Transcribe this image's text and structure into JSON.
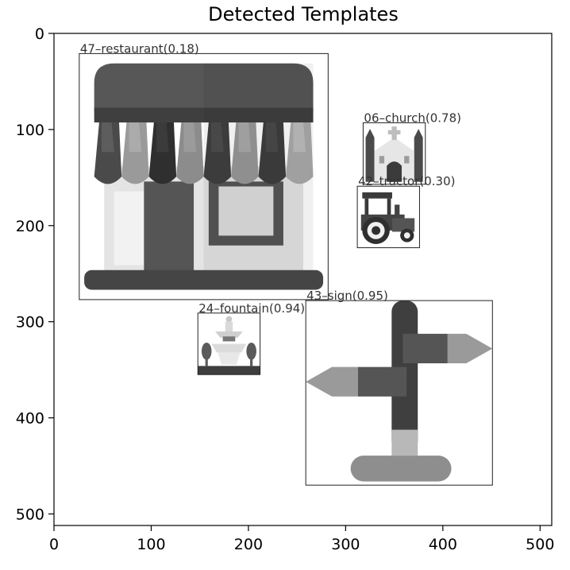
{
  "chart_data": {
    "type": "scatter",
    "title": "Detected Templates",
    "xlabel": "",
    "ylabel": "",
    "xlim": [
      0,
      512
    ],
    "ylim": [
      512,
      0
    ],
    "y_inverted": true,
    "grid": false,
    "xticks": [
      0,
      100,
      200,
      300,
      400,
      500
    ],
    "yticks": [
      0,
      100,
      200,
      300,
      400,
      500
    ],
    "xtick_labels": [
      "0",
      "100",
      "200",
      "300",
      "400",
      "500"
    ],
    "ytick_labels": [
      "0",
      "100",
      "200",
      "300",
      "400",
      "500"
    ],
    "detections": [
      {
        "label": "47–restaurant(0.18)",
        "id": "47",
        "name": "restaurant",
        "score": 0.18,
        "x0": 26,
        "y0": 21,
        "x1": 282,
        "y1": 277,
        "icon": "restaurant-storefront-icon"
      },
      {
        "label": "06–church(0.78)",
        "id": "06",
        "name": "church",
        "score": 0.78,
        "x0": 318,
        "y0": 93,
        "x1": 382,
        "y1": 157,
        "icon": "church-icon"
      },
      {
        "label": "42–tractor(0.30)",
        "id": "42",
        "name": "tractor",
        "score": 0.3,
        "x0": 312,
        "y0": 159,
        "x1": 376,
        "y1": 223,
        "icon": "tractor-icon"
      },
      {
        "label": "24–fountain(0.94)",
        "id": "24",
        "name": "fountain",
        "score": 0.94,
        "x0": 148,
        "y0": 291,
        "x1": 212,
        "y1": 355,
        "icon": "fountain-icon"
      },
      {
        "label": "43–sign(0.95)",
        "id": "43",
        "name": "sign",
        "score": 0.95,
        "x0": 259,
        "y0": 278,
        "x1": 451,
        "y1": 470,
        "icon": "signpost-icon"
      }
    ]
  }
}
